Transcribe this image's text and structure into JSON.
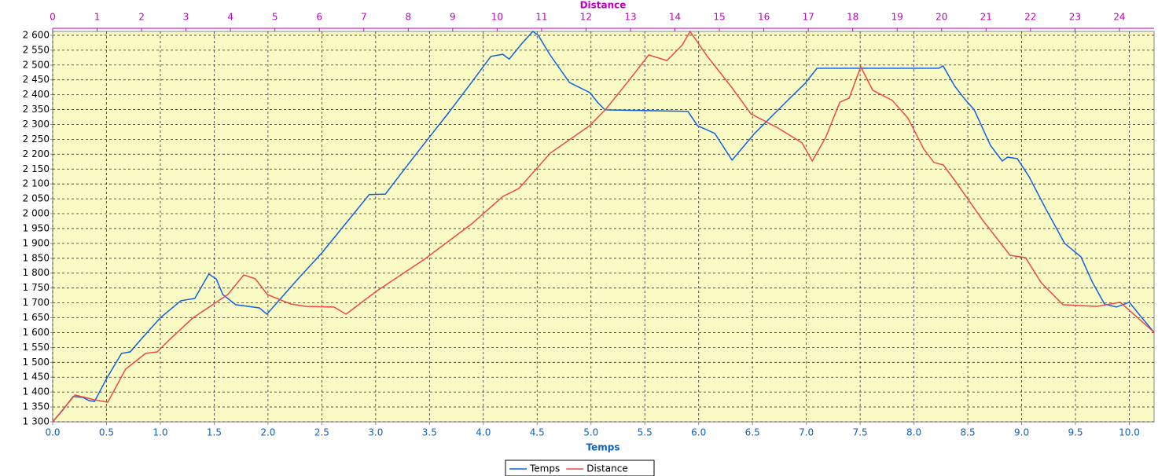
{
  "chart_data": {
    "type": "line",
    "xlabel": "Temps",
    "x2label": "Distance",
    "xlim": [
      0,
      10.23
    ],
    "x2lim": [
      0,
      24.78
    ],
    "ylim": [
      1300,
      2613
    ],
    "xticks": [
      {
        "value": 0,
        "label": "0.0"
      },
      0.5,
      {
        "value": 1,
        "label": "1.0"
      },
      1.5,
      {
        "value": 2,
        "label": "2.0"
      },
      2.5,
      {
        "value": 3,
        "label": "3.0"
      },
      3.5,
      {
        "value": 4,
        "label": "4.0"
      },
      4.5,
      {
        "value": 5,
        "label": "5.0"
      },
      5.5,
      {
        "value": 6,
        "label": "6.0"
      },
      6.5,
      {
        "value": 7,
        "label": "7.0"
      },
      7.5,
      {
        "value": 8,
        "label": "8.0"
      },
      8.5,
      {
        "value": 9,
        "label": "9.0"
      },
      9.5,
      {
        "value": 10,
        "label": "10.0"
      }
    ],
    "x2ticks": [
      0,
      1,
      2,
      3,
      4,
      5,
      6,
      7,
      8,
      9,
      10,
      11,
      12,
      13,
      14,
      15,
      16,
      17,
      18,
      19,
      20,
      21,
      22,
      23,
      24
    ],
    "yticks": [
      {
        "value": 1300,
        "label": "1 300"
      },
      {
        "value": 1350,
        "label": "1 350"
      },
      {
        "value": 1400,
        "label": "1 400"
      },
      {
        "value": 1450,
        "label": "1 450"
      },
      {
        "value": 1500,
        "label": "1 500"
      },
      {
        "value": 1550,
        "label": "1 550"
      },
      {
        "value": 1600,
        "label": "1 600"
      },
      {
        "value": 1650,
        "label": "1 650"
      },
      {
        "value": 1700,
        "label": "1 700"
      },
      {
        "value": 1750,
        "label": "1 750"
      },
      {
        "value": 1800,
        "label": "1 800"
      },
      {
        "value": 1850,
        "label": "1 850"
      },
      {
        "value": 1900,
        "label": "1 900"
      },
      {
        "value": 1950,
        "label": "1 950"
      },
      {
        "value": 2000,
        "label": "2 000"
      },
      {
        "value": 2050,
        "label": "2 050"
      },
      {
        "value": 2100,
        "label": "2 100"
      },
      {
        "value": 2150,
        "label": "2 150"
      },
      {
        "value": 2200,
        "label": "2 200"
      },
      {
        "value": 2250,
        "label": "2 250"
      },
      {
        "value": 2300,
        "label": "2 300"
      },
      {
        "value": 2350,
        "label": "2 350"
      },
      {
        "value": 2400,
        "label": "2 400"
      },
      {
        "value": 2450,
        "label": "2 450"
      },
      {
        "value": 2500,
        "label": "2 500"
      },
      {
        "value": 2550,
        "label": "2 550"
      },
      {
        "value": 2600,
        "label": "2 600"
      }
    ],
    "grid": true,
    "series": [
      {
        "name": "Temps",
        "color": "#1060e0",
        "xaxis": "x",
        "x": [
          0,
          0.095,
          0.19,
          0.28,
          0.34,
          0.39,
          0.5,
          0.64,
          0.72,
          0.82,
          1.0,
          1.19,
          1.32,
          1.45,
          1.52,
          1.58,
          1.7,
          1.92,
          1.99,
          2.28,
          2.5,
          2.76,
          2.94,
          3.09,
          3.27,
          3.45,
          3.67,
          3.89,
          4.07,
          4.18,
          4.24,
          4.36,
          4.46,
          4.51,
          4.62,
          4.8,
          4.99,
          5.06,
          5.13,
          5.9,
          5.99,
          6.15,
          6.31,
          6.52,
          6.81,
          6.99,
          7.1,
          8.23,
          8.27,
          8.38,
          8.47,
          8.56,
          8.71,
          8.82,
          8.87,
          8.96,
          9.07,
          9.22,
          9.4,
          9.55,
          9.66,
          9.77,
          9.88,
          10.0,
          10.09,
          10.23
        ],
        "values": [
          1300,
          1340,
          1385,
          1382,
          1371,
          1369,
          1445,
          1530,
          1535,
          1577,
          1650,
          1707,
          1715,
          1797,
          1780,
          1728,
          1694,
          1683,
          1662,
          1781,
          1868,
          1984,
          2064,
          2066,
          2151,
          2235,
          2336,
          2441,
          2529,
          2536,
          2520,
          2573,
          2613,
          2600,
          2534,
          2441,
          2407,
          2375,
          2349,
          2344,
          2296,
          2270,
          2180,
          2270,
          2375,
          2439,
          2489,
          2489,
          2497,
          2428,
          2386,
          2349,
          2230,
          2177,
          2190,
          2185,
          2124,
          2019,
          1900,
          1855,
          1768,
          1696,
          1686,
          1702,
          1662,
          1601
        ]
      },
      {
        "name": "Distance",
        "color": "#f04848",
        "xaxis": "x2",
        "x": [
          0,
          0.5,
          0.94,
          1.24,
          1.64,
          2.09,
          2.35,
          2.62,
          3.15,
          3.94,
          4.3,
          4.56,
          4.83,
          5.36,
          5.71,
          6.33,
          6.6,
          7.3,
          8.37,
          9.43,
          10.13,
          10.49,
          11.2,
          12.08,
          12.43,
          12.96,
          13.41,
          13.82,
          14.17,
          14.34,
          14.73,
          15.26,
          15.71,
          16.32,
          16.86,
          17.09,
          17.39,
          17.71,
          17.92,
          18.18,
          18.45,
          18.89,
          19.24,
          19.6,
          19.83,
          20.04,
          20.3,
          20.92,
          21.54,
          21.89,
          22.24,
          22.73,
          23.49,
          24.02,
          24.78
        ],
        "values": [
          1300,
          1390,
          1374,
          1366,
          1477,
          1530,
          1535,
          1575,
          1649,
          1728,
          1794,
          1781,
          1728,
          1696,
          1688,
          1686,
          1662,
          1741,
          1847,
          1966,
          2058,
          2085,
          2204,
          2296,
          2349,
          2447,
          2534,
          2515,
          2568,
          2613,
          2529,
          2428,
          2336,
          2288,
          2238,
          2177,
          2256,
          2375,
          2389,
          2494,
          2415,
          2381,
          2322,
          2217,
          2172,
          2164,
          2111,
          1979,
          1860,
          1852,
          1768,
          1694,
          1688,
          1702,
          1601
        ]
      }
    ]
  }
}
